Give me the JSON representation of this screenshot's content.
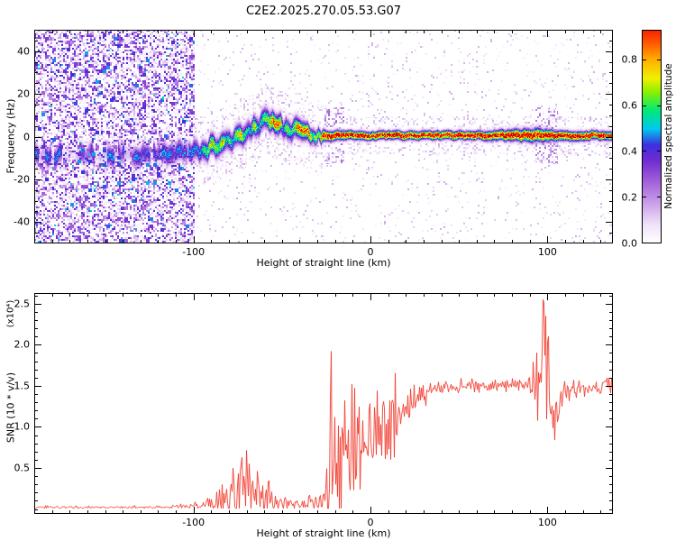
{
  "title": "C2E2.2025.270.05.53.G07",
  "colors": {
    "line": "#f13a2c",
    "axis": "#000000",
    "background": "#ffffff"
  },
  "chart_data": [
    {
      "type": "heatmap",
      "title": "C2E2.2025.270.05.53.G07",
      "xlabel": "Height of straight line (km)",
      "ylabel": "Frequency (Hz)",
      "xlim": [
        -190,
        137
      ],
      "ylim": [
        -50,
        50
      ],
      "xticks": [
        [
          -100,
          "-100"
        ],
        [
          0,
          "0"
        ],
        [
          100,
          "100"
        ]
      ],
      "yticks": [
        [
          40,
          "40"
        ],
        [
          20,
          "20"
        ],
        [
          0,
          "0"
        ],
        [
          -20,
          "-20"
        ],
        [
          -40,
          "-40"
        ]
      ],
      "grid": false,
      "noise_cutoff_x": -100,
      "signal_onset_x": -27,
      "ridge": [
        [
          -190,
          -8,
          0.42,
          3
        ],
        [
          -170,
          -9,
          0.4,
          3
        ],
        [
          -150,
          -8,
          0.42,
          3
        ],
        [
          -130,
          -9,
          0.42,
          3
        ],
        [
          -115,
          -8,
          0.45,
          3
        ],
        [
          -100,
          -7,
          0.52,
          3
        ],
        [
          -90,
          -5,
          0.58,
          3
        ],
        [
          -80,
          -2,
          0.62,
          3
        ],
        [
          -72,
          1,
          0.66,
          3
        ],
        [
          -65,
          4,
          0.7,
          3
        ],
        [
          -58,
          8,
          0.72,
          3
        ],
        [
          -52,
          6,
          0.68,
          3
        ],
        [
          -47,
          2,
          0.65,
          3
        ],
        [
          -42,
          5,
          0.7,
          3
        ],
        [
          -36,
          3,
          0.72,
          2.6
        ],
        [
          -30,
          0,
          0.78,
          2.2
        ],
        [
          -24,
          0.5,
          0.95,
          1.5
        ],
        [
          -10,
          0.5,
          1,
          1.3
        ],
        [
          20,
          0.5,
          1,
          1.3
        ],
        [
          60,
          0.5,
          1,
          1.3
        ],
        [
          95,
          0.5,
          1,
          2.0
        ],
        [
          105,
          0.5,
          1,
          1.5
        ],
        [
          137,
          0.5,
          1,
          1.3
        ]
      ],
      "colorbar": {
        "label": "Normalized spectral amplitude",
        "ticks": [
          [
            0,
            "0.0"
          ],
          [
            0.2,
            "0.2"
          ],
          [
            0.4,
            "0.4"
          ],
          [
            0.6,
            "0.6"
          ],
          [
            0.8,
            "0.8"
          ]
        ],
        "vmax": 0.93
      },
      "colormap": [
        [
          0,
          "#ffffff"
        ],
        [
          0.08,
          "#f0e3f8"
        ],
        [
          0.18,
          "#c79ae8"
        ],
        [
          0.28,
          "#9b59d8"
        ],
        [
          0.36,
          "#6f2cd0"
        ],
        [
          0.43,
          "#3c2fe0"
        ],
        [
          0.5,
          "#00c8f0"
        ],
        [
          0.58,
          "#00e878"
        ],
        [
          0.66,
          "#8af000"
        ],
        [
          0.72,
          "#f0f000"
        ],
        [
          0.8,
          "#ffb000"
        ],
        [
          0.88,
          "#ff5000"
        ],
        [
          0.95,
          "#f01000"
        ],
        [
          1,
          "#c80000"
        ]
      ]
    },
    {
      "type": "line",
      "xlabel": "Height of straight line (km)",
      "ylabel": "SNR (10 * v/v)",
      "ylabel_scale": "(x10⁴)",
      "xlim": [
        -190,
        137
      ],
      "ylim": [
        -0.06,
        2.63
      ],
      "xticks": [
        [
          -100,
          "-100"
        ],
        [
          0,
          "0"
        ],
        [
          100,
          "100"
        ]
      ],
      "yticks": [
        [
          0.5,
          "0.5"
        ],
        [
          1,
          "1.0"
        ],
        [
          1.5,
          "1.5"
        ],
        [
          2,
          "2.0"
        ],
        [
          2.5,
          "2.5"
        ]
      ],
      "grid": false,
      "envelope": [
        [
          -190,
          0.02,
          0.012
        ],
        [
          -150,
          0.02,
          0.012
        ],
        [
          -110,
          0.025,
          0.015
        ],
        [
          -97,
          0.04,
          0.03
        ],
        [
          -90,
          0.07,
          0.07
        ],
        [
          -84,
          0.13,
          0.18
        ],
        [
          -78,
          0.16,
          0.26
        ],
        [
          -72,
          0.18,
          0.3
        ],
        [
          -66,
          0.16,
          0.26
        ],
        [
          -60,
          0.13,
          0.2
        ],
        [
          -55,
          0.1,
          0.12
        ],
        [
          -50,
          0.07,
          0.07
        ],
        [
          -44,
          0.06,
          0.05
        ],
        [
          -38,
          0.06,
          0.05
        ],
        [
          -32,
          0.07,
          0.06
        ],
        [
          -27,
          0.1,
          0.12
        ],
        [
          -23,
          0.35,
          0.6
        ],
        [
          -20,
          0.55,
          0.6
        ],
        [
          -16,
          0.5,
          0.5
        ],
        [
          -12,
          0.6,
          0.55
        ],
        [
          -8,
          0.65,
          0.5
        ],
        [
          -4,
          0.75,
          0.5
        ],
        [
          0,
          0.85,
          0.45
        ],
        [
          4,
          0.95,
          0.4
        ],
        [
          8,
          1.0,
          0.4
        ],
        [
          12,
          1.05,
          0.38
        ],
        [
          16,
          1.15,
          0.3
        ],
        [
          20,
          1.25,
          0.22
        ],
        [
          25,
          1.33,
          0.15
        ],
        [
          30,
          1.4,
          0.1
        ],
        [
          38,
          1.46,
          0.06
        ],
        [
          50,
          1.5,
          0.05
        ],
        [
          65,
          1.5,
          0.05
        ],
        [
          80,
          1.5,
          0.06
        ],
        [
          90,
          1.52,
          0.08
        ],
        [
          95,
          1.6,
          0.35
        ],
        [
          98,
          1.9,
          0.7
        ],
        [
          100,
          1.7,
          0.7
        ],
        [
          102,
          1.1,
          0.4
        ],
        [
          104,
          1.0,
          0.25
        ],
        [
          107,
          1.3,
          0.15
        ],
        [
          112,
          1.45,
          0.08
        ],
        [
          125,
          1.48,
          0.06
        ],
        [
          137,
          1.5,
          0.08
        ]
      ],
      "spikes": [
        [
          -78,
          0.5
        ],
        [
          -73,
          0.63
        ],
        [
          -69,
          0.55
        ],
        [
          -64,
          0.46
        ],
        [
          -22.5,
          1.92
        ],
        [
          -10.5,
          1.52
        ],
        [
          97.5,
          2.55
        ],
        [
          99,
          2.35
        ],
        [
          100.5,
          2.1
        ]
      ]
    }
  ]
}
